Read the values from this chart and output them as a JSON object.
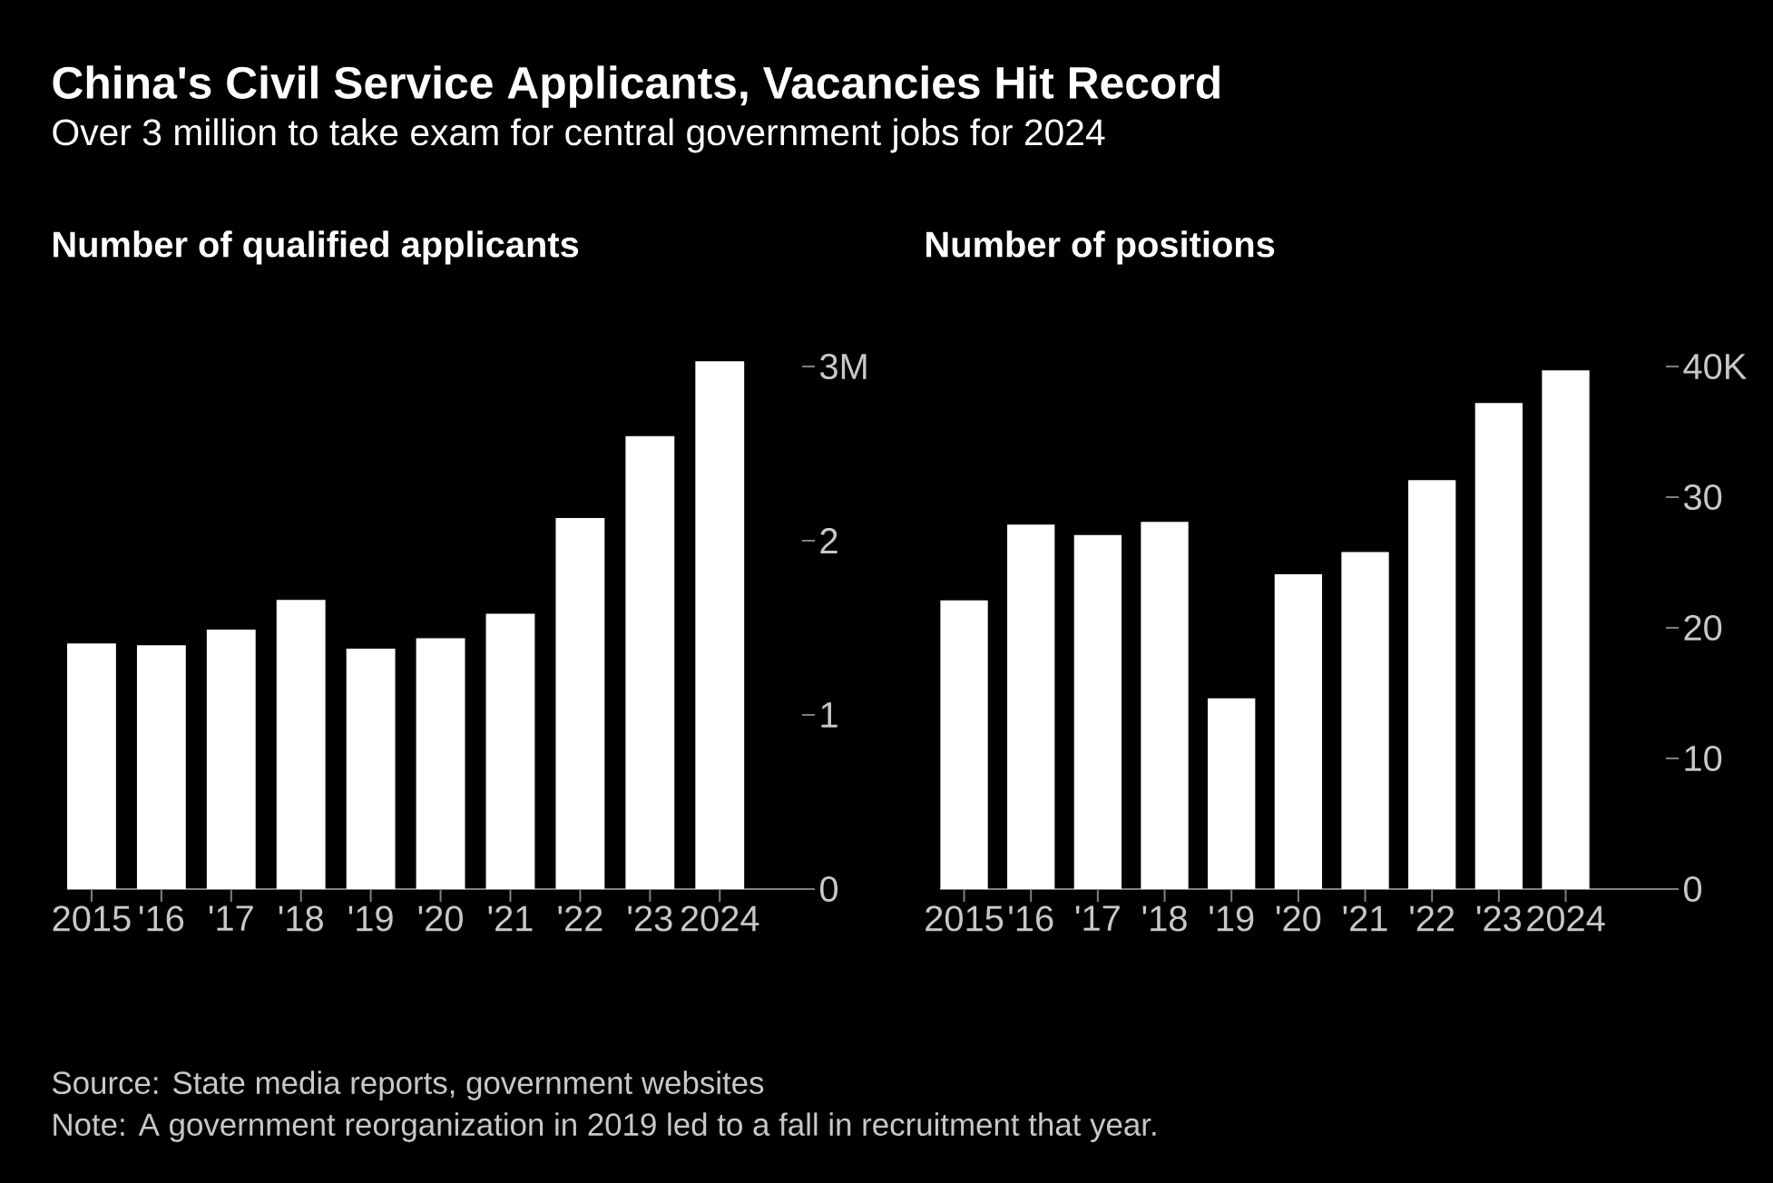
{
  "chart_data": [
    {
      "type": "other",
      "title": "China's Civil Service Applicants, Vacancies Hit Record",
      "subtitle": "Over 3 million to take exam for central government jobs for 2024",
      "annotations": [
        "Source: State media reports, government websites",
        "Note: A government reorganization in 2019 led to a fall in recruitment that year."
      ]
    },
    {
      "type": "bar",
      "title": "Number of qualified applicants",
      "categories": [
        "2015",
        "'16",
        "'17",
        "'18",
        "'19",
        "'20",
        "'21",
        "'22",
        "'23",
        "2024"
      ],
      "values": [
        1.41,
        1.4,
        1.49,
        1.66,
        1.38,
        1.44,
        1.58,
        2.13,
        2.6,
        3.03
      ],
      "color": "#ffffff",
      "ylim": [
        0,
        3.03
      ],
      "yticks": [
        0,
        1,
        2,
        {
          "value": 3,
          "label": "3M"
        }
      ]
    },
    {
      "type": "bar",
      "title": "Number of positions",
      "categories": [
        "2015",
        "'16",
        "'17",
        "'18",
        "'19",
        "'20",
        "'21",
        "'22",
        "'23",
        "2024"
      ],
      "values": [
        22.1,
        27.9,
        27.1,
        28.1,
        14.6,
        24.1,
        25.8,
        31.3,
        37.2,
        39.7
      ],
      "color": "#ffffff",
      "ylim": [
        0,
        40
      ],
      "yticks": [
        0,
        10,
        20,
        30,
        {
          "value": 40,
          "label": "40K"
        }
      ]
    }
  ]
}
